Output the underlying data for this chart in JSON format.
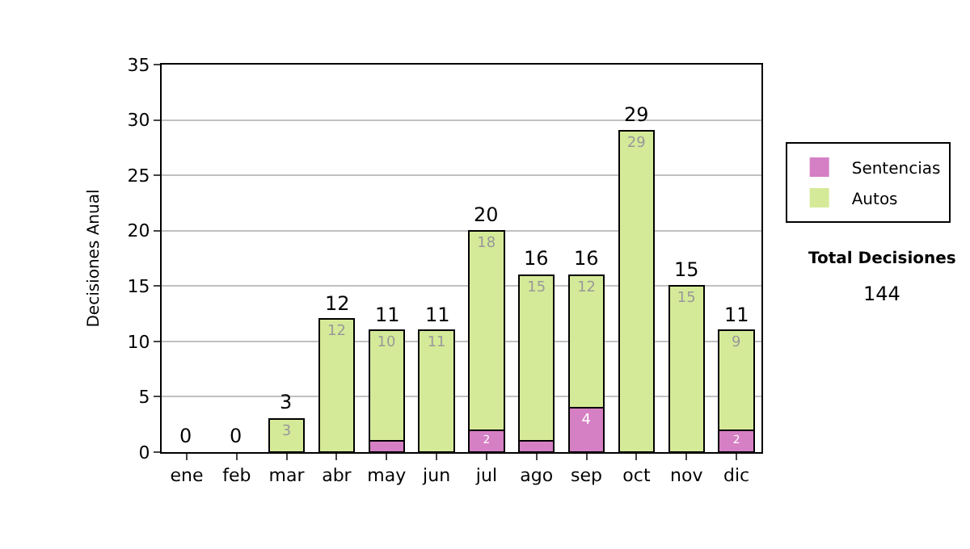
{
  "chart_data": {
    "type": "bar",
    "stacked": true,
    "ylabel": "Decisiones Anual",
    "categories": [
      "ene",
      "feb",
      "mar",
      "abr",
      "may",
      "jun",
      "jul",
      "ago",
      "sep",
      "oct",
      "nov",
      "dic"
    ],
    "series": [
      {
        "name": "Sentencias",
        "color": "#d57fc4",
        "values": [
          0,
          0,
          0,
          0,
          1,
          0,
          2,
          1,
          4,
          0,
          0,
          2
        ],
        "value_labels": [
          null,
          null,
          null,
          null,
          null,
          null,
          "2",
          null,
          "4",
          null,
          null,
          "2"
        ]
      },
      {
        "name": "Autos",
        "color": "#d5ea98",
        "values": [
          0,
          0,
          3,
          12,
          10,
          11,
          18,
          15,
          12,
          29,
          15,
          9
        ],
        "value_labels": [
          null,
          null,
          "3",
          "12",
          "10",
          "11",
          "18",
          "15",
          "12",
          "29",
          "15",
          "9"
        ]
      }
    ],
    "totals": [
      "0",
      "0",
      "3",
      "12",
      "11",
      "11",
      "20",
      "16",
      "16",
      "29",
      "15",
      "11"
    ],
    "ylim": [
      0,
      35
    ],
    "yticks": [
      0,
      5,
      10,
      15,
      20,
      25,
      30,
      35
    ],
    "grid": "y",
    "legend": "right",
    "annotations": [
      "Total Decisiones",
      "144"
    ]
  }
}
